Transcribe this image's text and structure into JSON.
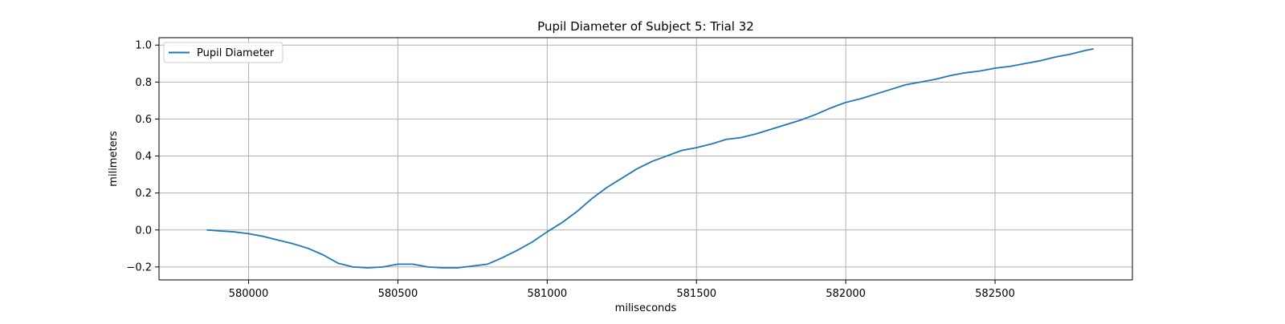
{
  "chart_data": {
    "type": "line",
    "title": "Pupil Diameter of Subject 5: Trial 32",
    "xlabel": "miliseconds",
    "ylabel": "milimeters",
    "xlim": [
      579700,
      582960
    ],
    "ylim": [
      -0.27,
      1.04
    ],
    "xticks": [
      580000,
      580500,
      581000,
      581500,
      582000,
      582500
    ],
    "yticks": [
      -0.2,
      0.0,
      0.2,
      0.4,
      0.6,
      0.8,
      1.0
    ],
    "grid": true,
    "legend_position": "top-left",
    "series": [
      {
        "name": "Pupil Diameter",
        "color": "#1f77b4",
        "x": [
          579860,
          579900,
          579950,
          580000,
          580050,
          580100,
          580150,
          580200,
          580250,
          580300,
          580350,
          580400,
          580450,
          580500,
          580550,
          580600,
          580650,
          580700,
          580750,
          580800,
          580850,
          580900,
          580950,
          581000,
          581050,
          581100,
          581150,
          581200,
          581250,
          581300,
          581350,
          581400,
          581450,
          581500,
          581550,
          581600,
          581650,
          581700,
          581750,
          581800,
          581850,
          581900,
          581950,
          582000,
          582050,
          582100,
          582150,
          582200,
          582250,
          582300,
          582350,
          582400,
          582450,
          582500,
          582550,
          582600,
          582650,
          582700,
          582750,
          582800,
          582830
        ],
        "y": [
          0.0,
          -0.005,
          -0.01,
          -0.02,
          -0.035,
          -0.055,
          -0.075,
          -0.1,
          -0.135,
          -0.18,
          -0.2,
          -0.205,
          -0.2,
          -0.185,
          -0.185,
          -0.2,
          -0.205,
          -0.205,
          -0.195,
          -0.185,
          -0.15,
          -0.11,
          -0.065,
          -0.01,
          0.04,
          0.1,
          0.17,
          0.23,
          0.28,
          0.33,
          0.37,
          0.4,
          0.43,
          0.445,
          0.465,
          0.49,
          0.5,
          0.52,
          0.545,
          0.57,
          0.595,
          0.625,
          0.66,
          0.69,
          0.71,
          0.735,
          0.76,
          0.785,
          0.8,
          0.815,
          0.835,
          0.85,
          0.86,
          0.875,
          0.885,
          0.9,
          0.915,
          0.935,
          0.95,
          0.97,
          0.98
        ]
      }
    ]
  }
}
